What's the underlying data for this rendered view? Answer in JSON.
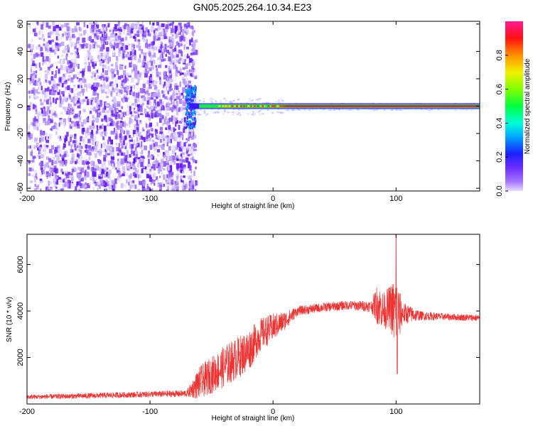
{
  "title": "GN05.2025.264.10.34.E23",
  "chart_data": [
    {
      "type": "heatmap",
      "name": "spectrogram",
      "xlabel": "Height of straight line (km)",
      "ylabel": "Frequency (Hz)",
      "xlim": [
        -200,
        168
      ],
      "ylim": [
        -62,
        62
      ],
      "xticks": [
        -200,
        -100,
        0,
        100
      ],
      "yticks": [
        60,
        40,
        20,
        0,
        -20,
        -40,
        -60
      ],
      "noise_region_x": [
        -200,
        -68
      ],
      "signal_line_frequency": 0,
      "signal_onset_x": -68,
      "notes": "Broadband noise below about -68 km; narrow strong line near 0 Hz above it"
    },
    {
      "type": "colorbar",
      "label": "Normalized spectral amplitude",
      "range": [
        0,
        1
      ],
      "ticks": [
        "0.0",
        "0.2",
        "0.4",
        "0.6",
        "0.8"
      ],
      "colormap": [
        "#dcd0ff",
        "#8a2be2",
        "#5a2dff",
        "#0030ff",
        "#00c8ff",
        "#00ffa0",
        "#40ff00",
        "#c8ff00",
        "#ffd000",
        "#ff6000",
        "#ff0000",
        "#ff1a8c"
      ]
    },
    {
      "type": "line",
      "name": "snr",
      "xlabel": "Height of straight line (km)",
      "ylabel": "SNR (10 * v/v)",
      "xlim": [
        -200,
        168
      ],
      "ylim": [
        0,
        7300
      ],
      "xticks": [
        -200,
        -100,
        0,
        100
      ],
      "yticks": [
        2000,
        4000,
        6000
      ],
      "color": "#ee3333",
      "envelope": {
        "x": [
          -200,
          -150,
          -100,
          -70,
          -60,
          -40,
          -20,
          -10,
          0,
          10,
          20,
          40,
          60,
          80,
          85,
          90,
          95,
          100,
          105,
          120,
          140,
          168
        ],
        "center": [
          300,
          350,
          420,
          450,
          900,
          1600,
          2300,
          3000,
          3300,
          3600,
          4000,
          4150,
          4250,
          4200,
          4300,
          4000,
          4200,
          3800,
          3900,
          3800,
          3750,
          3700
        ],
        "spread": [
          100,
          120,
          130,
          150,
          700,
          900,
          900,
          700,
          600,
          400,
          200,
          200,
          200,
          250,
          900,
          800,
          900,
          1800,
          500,
          200,
          150,
          150
        ]
      },
      "peak": {
        "x": 100,
        "y": 7300
      },
      "dip": {
        "x": 101,
        "y": 1300
      }
    }
  ]
}
